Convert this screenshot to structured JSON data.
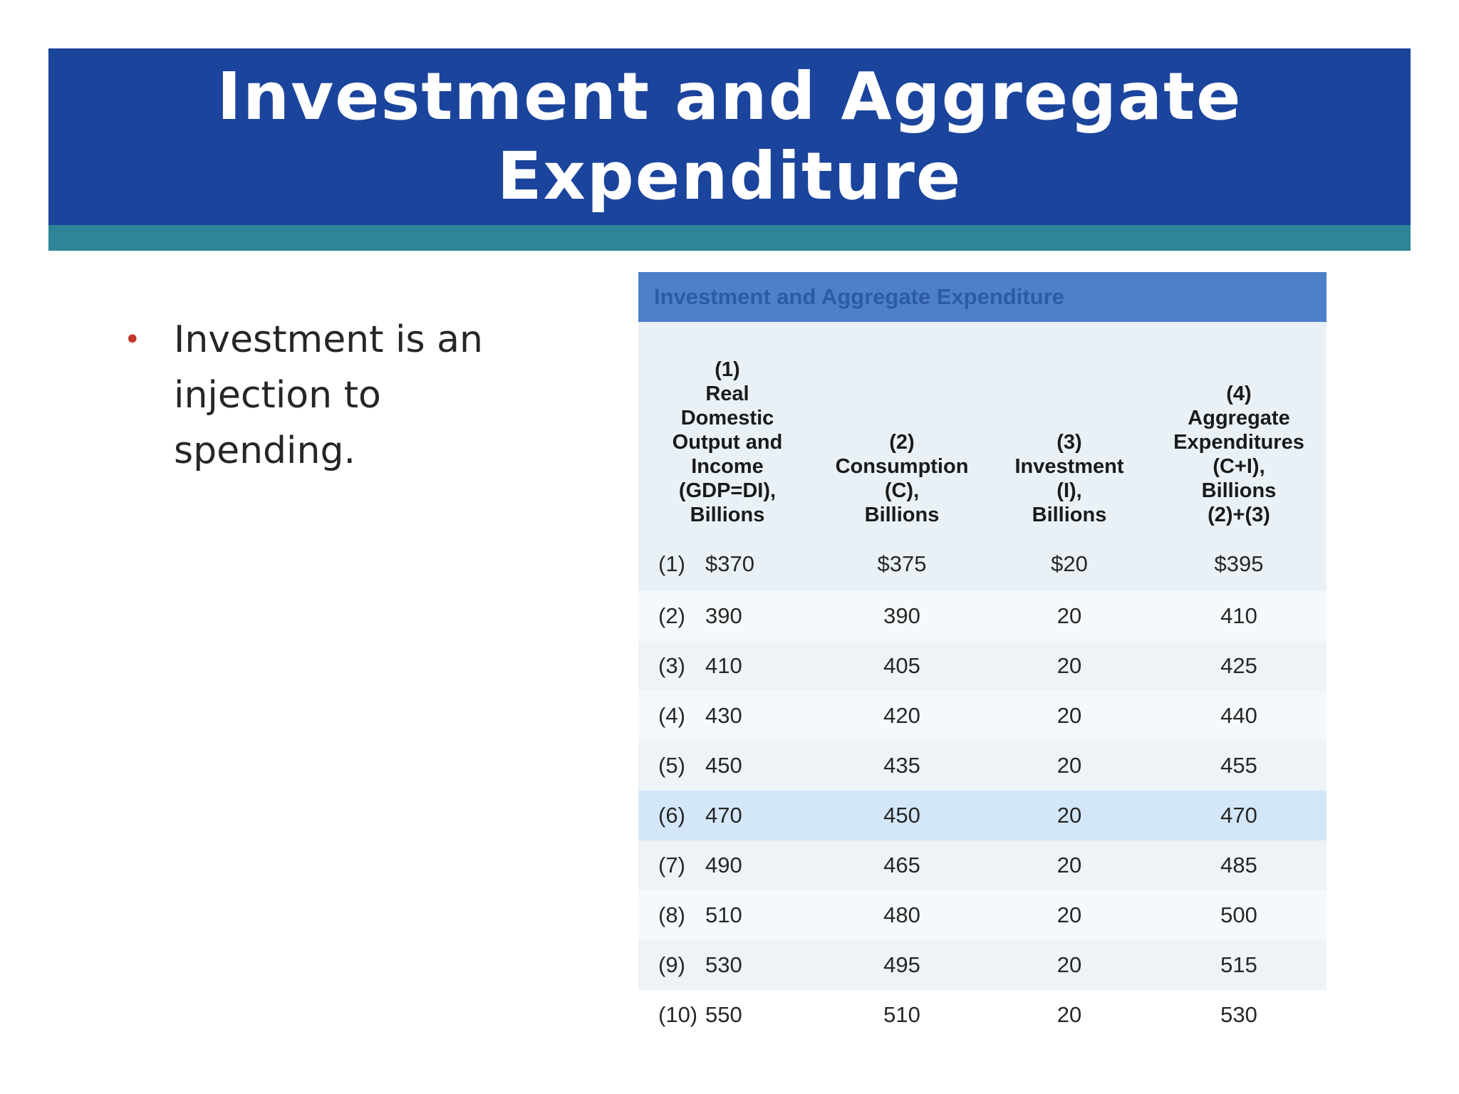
{
  "slide": {
    "title": "Investment and Aggregate Expenditure",
    "bullets": [
      "Investment is an injection to spending."
    ]
  },
  "table": {
    "caption": "Investment and Aggregate Expenditure",
    "headers": [
      "(1)\nReal\nDomestic\nOutput and\nIncome\n(GDP=DI),\nBillions",
      "(2)\nConsumption\n(C),\nBillions",
      "(3)\nInvestment\n(I),\nBillions",
      "(4)\nAggregate\nExpenditures\n(C+I),\nBillions\n(2)+(3)"
    ],
    "rows": [
      {
        "num": "(1)",
        "gdp": "$370",
        "consumption": "$375",
        "investment": "$20",
        "aggregate": "$395"
      },
      {
        "num": "(2)",
        "gdp": "390",
        "consumption": "390",
        "investment": "20",
        "aggregate": "410"
      },
      {
        "num": "(3)",
        "gdp": "410",
        "consumption": "405",
        "investment": "20",
        "aggregate": "425"
      },
      {
        "num": "(4)",
        "gdp": "430",
        "consumption": "420",
        "investment": "20",
        "aggregate": "440"
      },
      {
        "num": "(5)",
        "gdp": "450",
        "consumption": "435",
        "investment": "20",
        "aggregate": "455"
      },
      {
        "num": "(6)",
        "gdp": "470",
        "consumption": "450",
        "investment": "20",
        "aggregate": "470"
      },
      {
        "num": "(7)",
        "gdp": "490",
        "consumption": "465",
        "investment": "20",
        "aggregate": "485"
      },
      {
        "num": "(8)",
        "gdp": "510",
        "consumption": "480",
        "investment": "20",
        "aggregate": "500"
      },
      {
        "num": "(9)",
        "gdp": "530",
        "consumption": "495",
        "investment": "20",
        "aggregate": "515"
      },
      {
        "num": "(10)",
        "gdp": "550",
        "consumption": "510",
        "investment": "20",
        "aggregate": "530"
      }
    ]
  },
  "colors": {
    "title_bar": "#1b449c",
    "title_accent": "#2e8598",
    "bullet": "#c0392b",
    "caption_bar": "#4e80c9",
    "highlight_row": "#d4e7f8"
  }
}
